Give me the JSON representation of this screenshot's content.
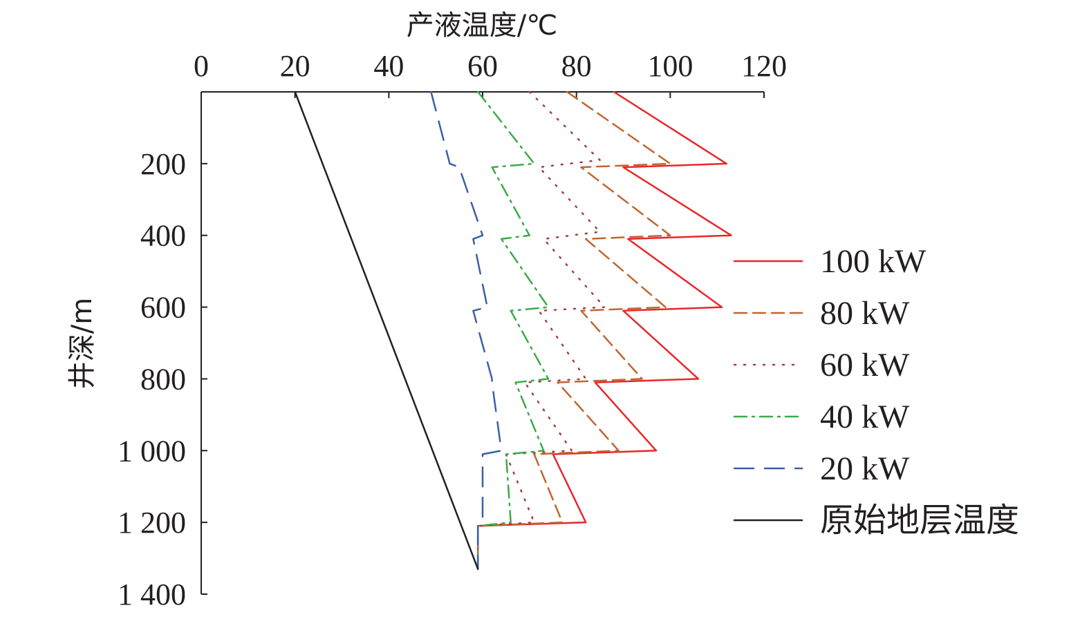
{
  "chart_data": {
    "type": "line",
    "xlabel": "产液温度/℃",
    "ylabel": "井深/m",
    "x_axis_position": "top",
    "y_axis_inverted": true,
    "xlim": [
      0,
      120
    ],
    "ylim": [
      0,
      1400
    ],
    "x_ticks": [
      0,
      20,
      40,
      60,
      80,
      100,
      120
    ],
    "x_tick_labels": [
      "0",
      "20",
      "40",
      "60",
      "80",
      "100",
      "120"
    ],
    "y_ticks": [
      200,
      400,
      600,
      800,
      1000,
      1200,
      1400
    ],
    "y_tick_labels": [
      "200",
      "400",
      "600",
      "800",
      "1 000",
      "1 200",
      "1 400"
    ],
    "grid": false,
    "legend_position": "right",
    "series": [
      {
        "name": "100 kW",
        "color": "#e8262b",
        "dash": "solid",
        "points": [
          [
            88,
            0
          ],
          [
            112,
            200
          ],
          [
            90,
            210
          ],
          [
            113,
            400
          ],
          [
            91,
            410
          ],
          [
            111,
            600
          ],
          [
            90,
            610
          ],
          [
            106,
            800
          ],
          [
            84,
            810
          ],
          [
            97,
            1000
          ],
          [
            75,
            1010
          ],
          [
            82,
            1200
          ],
          [
            59,
            1210
          ],
          [
            59,
            1330
          ]
        ]
      },
      {
        "name": "80 kW",
        "color": "#c0652f",
        "dash": "dash",
        "points": [
          [
            78,
            0
          ],
          [
            100,
            200
          ],
          [
            81,
            210
          ],
          [
            100,
            400
          ],
          [
            82,
            410
          ],
          [
            99,
            600
          ],
          [
            81,
            610
          ],
          [
            94,
            800
          ],
          [
            76,
            810
          ],
          [
            89,
            1000
          ],
          [
            71,
            1010
          ],
          [
            77,
            1200
          ],
          [
            59,
            1210
          ],
          [
            59,
            1330
          ]
        ]
      },
      {
        "name": "60 kW",
        "color": "#a23b44",
        "dash": "dot",
        "points": [
          [
            70,
            0
          ],
          [
            85,
            190
          ],
          [
            72,
            210
          ],
          [
            85,
            390
          ],
          [
            73,
            410
          ],
          [
            86,
            600
          ],
          [
            72,
            610
          ],
          [
            82,
            800
          ],
          [
            69,
            810
          ],
          [
            79,
            1000
          ],
          [
            65,
            1010
          ],
          [
            71,
            1200
          ],
          [
            59,
            1210
          ],
          [
            59,
            1330
          ]
        ]
      },
      {
        "name": "40 kW",
        "color": "#3aaa4a",
        "dash": "dashdot",
        "points": [
          [
            59,
            0
          ],
          [
            71,
            200
          ],
          [
            62,
            210
          ],
          [
            70,
            400
          ],
          [
            64,
            410
          ],
          [
            74,
            600
          ],
          [
            66,
            610
          ],
          [
            74,
            800
          ],
          [
            67,
            810
          ],
          [
            73,
            1000
          ],
          [
            65,
            1010
          ],
          [
            66,
            1200
          ],
          [
            59,
            1210
          ],
          [
            59,
            1330
          ]
        ]
      },
      {
        "name": "20 kW",
        "color": "#3a5fa8",
        "dash": "longdash",
        "points": [
          [
            49,
            0
          ],
          [
            53,
            200
          ],
          [
            55,
            210
          ],
          [
            60,
            400
          ],
          [
            58,
            410
          ],
          [
            61,
            600
          ],
          [
            58,
            610
          ],
          [
            62,
            800
          ],
          [
            62,
            810
          ],
          [
            64,
            1000
          ],
          [
            60,
            1010
          ],
          [
            60,
            1200
          ],
          [
            59,
            1210
          ],
          [
            59,
            1330
          ]
        ]
      },
      {
        "name": "原始地层温度",
        "color": "#231f20",
        "dash": "solid",
        "points": [
          [
            20,
            0
          ],
          [
            59,
            1330
          ]
        ]
      }
    ]
  }
}
